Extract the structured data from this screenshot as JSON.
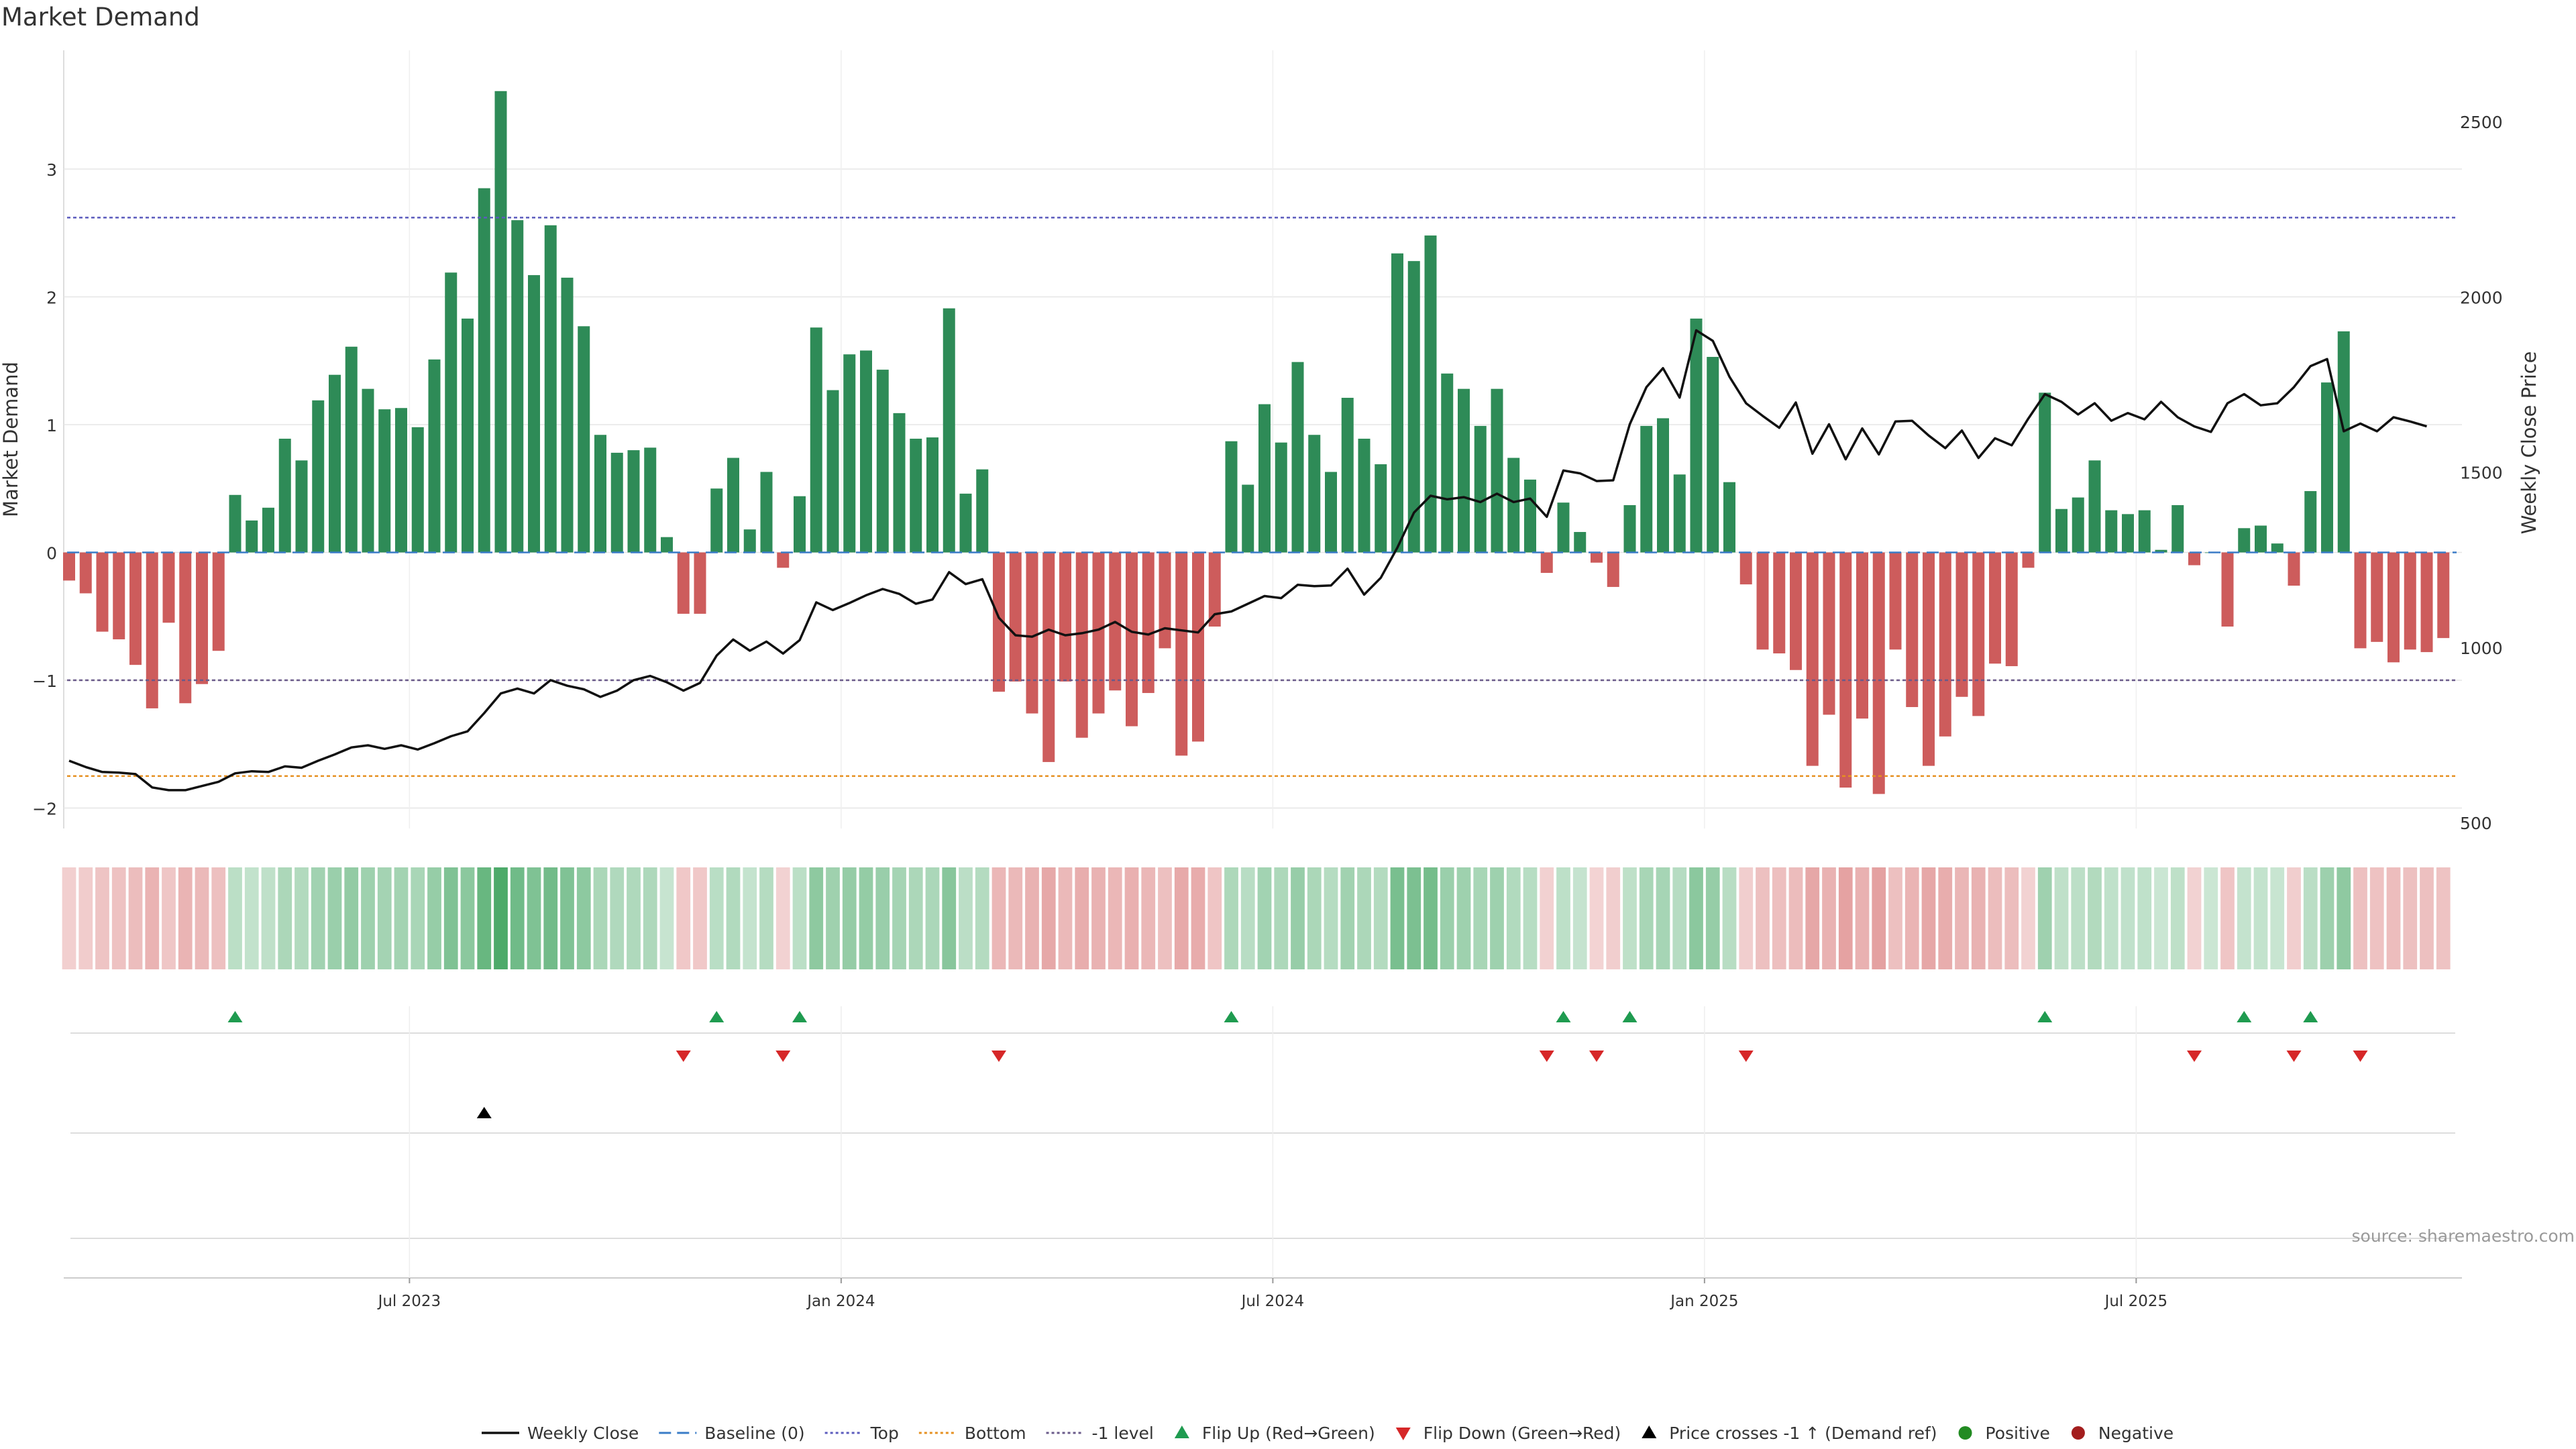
{
  "title": "Market Demand",
  "source": "source: sharemaestro.com",
  "colors": {
    "positive_bar": "#2e8b57",
    "negative_bar": "#cd5c5c",
    "price_line": "#111111",
    "top_line": "#5b5bbd",
    "bottom_line": "#e69020",
    "minus1_line": "#6a5a8a",
    "flip_up": "#1f9b50",
    "flip_down": "#d62728",
    "cross_marker": "#000000",
    "grid": "#e6e6e6"
  },
  "chart_data": {
    "type": "bar",
    "title": "Market Demand",
    "xlabel": "",
    "ylabel": "Market Demand",
    "y2label": "Weekly Close Price",
    "ylim": [
      -2.2,
      3.8
    ],
    "y2lim": [
      500,
      2620
    ],
    "yticks": [
      -2,
      -1,
      0,
      1,
      2,
      3
    ],
    "y2ticks": [
      500,
      1000,
      1500,
      2000,
      2500
    ],
    "start_week": "2023-03-06",
    "x_ticks": [
      {
        "label": "Jul 2023",
        "week": 21
      },
      {
        "label": "Jan 2024",
        "week": 47
      },
      {
        "label": "Jul 2024",
        "week": 73
      },
      {
        "label": "Jan 2025",
        "week": 99
      },
      {
        "label": "Jul 2025",
        "week": 125
      }
    ],
    "reference_lines": {
      "top": 2.62,
      "bottom": -1.75,
      "minus1": -1.0,
      "baseline": 0
    },
    "demand": [
      -0.22,
      -0.32,
      -0.62,
      -0.68,
      -0.88,
      -1.22,
      -0.55,
      -1.18,
      -1.03,
      -0.77,
      0.45,
      0.25,
      0.35,
      0.89,
      0.72,
      1.19,
      1.39,
      1.61,
      1.28,
      1.12,
      1.13,
      0.98,
      1.51,
      2.19,
      1.83,
      2.85,
      3.61,
      2.6,
      2.17,
      2.56,
      2.15,
      1.77,
      0.92,
      0.78,
      0.8,
      0.82,
      0.12,
      -0.48,
      -0.48,
      0.5,
      0.74,
      0.18,
      0.63,
      -0.12,
      0.44,
      1.76,
      1.27,
      1.55,
      1.58,
      1.43,
      1.09,
      0.89,
      0.9,
      1.91,
      0.46,
      0.65,
      -1.09,
      -1.01,
      -1.26,
      -1.64,
      -1.01,
      -1.45,
      -1.26,
      -1.08,
      -1.36,
      -1.1,
      -0.75,
      -1.59,
      -1.48,
      -0.58,
      0.87,
      0.53,
      1.16,
      0.86,
      1.49,
      0.92,
      0.63,
      1.21,
      0.89,
      0.69,
      2.34,
      2.28,
      2.48,
      1.4,
      1.28,
      0.99,
      1.28,
      0.74,
      0.57,
      -0.16,
      0.39,
      0.16,
      -0.08,
      -0.27,
      0.37,
      0.99,
      1.05,
      0.61,
      1.83,
      1.53,
      0.55,
      -0.25,
      -0.76,
      -0.79,
      -0.92,
      -1.67,
      -1.27,
      -1.84,
      -1.3,
      -1.89,
      -0.76,
      -1.21,
      -1.67,
      -1.44,
      -1.13,
      -1.28,
      -0.87,
      -0.89,
      -0.12,
      1.25,
      0.34,
      0.43,
      0.72,
      0.33,
      0.3,
      0.33,
      0.02,
      0.37,
      -0.1,
      0.0,
      -0.58,
      0.19,
      0.21,
      0.07,
      -0.26,
      0.48,
      1.33,
      1.73,
      -0.75,
      -0.7,
      -0.86,
      -0.76,
      -0.78,
      -0.67
    ],
    "close": [
      676,
      658,
      644,
      642,
      638,
      600,
      592,
      592,
      604,
      616,
      640,
      646,
      644,
      660,
      656,
      676,
      694,
      714,
      720,
      710,
      720,
      708,
      726,
      746,
      760,
      812,
      868,
      882,
      868,
      906,
      890,
      880,
      858,
      876,
      906,
      918,
      900,
      876,
      898,
      976,
      1022,
      990,
      1016,
      982,
      1020,
      1128,
      1106,
      1126,
      1148,
      1166,
      1152,
      1124,
      1136,
      1214,
      1180,
      1194,
      1084,
      1034,
      1030,
      1050,
      1034,
      1040,
      1050,
      1072,
      1044,
      1036,
      1054,
      1048,
      1042,
      1094,
      1102,
      1124,
      1146,
      1140,
      1178,
      1174,
      1176,
      1224,
      1150,
      1198,
      1284,
      1384,
      1432,
      1422,
      1428,
      1414,
      1438,
      1414,
      1424,
      1372,
      1504,
      1496,
      1474,
      1476,
      1636,
      1742,
      1796,
      1712,
      1904,
      1874,
      1772,
      1696,
      1660,
      1626,
      1698,
      1552,
      1636,
      1536,
      1624,
      1550,
      1644,
      1646,
      1604,
      1568,
      1618,
      1540,
      1596,
      1576,
      1652,
      1722,
      1700,
      1664,
      1696,
      1646,
      1668,
      1650,
      1700,
      1656,
      1630,
      1614,
      1696,
      1722,
      1690,
      1696,
      1742,
      1802,
      1822,
      1616,
      1638,
      1616,
      1656,
      1644,
      1630
    ]
  },
  "heat_strip": {
    "negative_hue": "#d05858",
    "positive_hue": "#2e9b50"
  },
  "signals": {
    "flip_up_weeks": [
      10,
      39,
      44,
      70,
      90,
      94,
      119,
      131,
      135
    ],
    "flip_down_weeks": [
      37,
      43,
      56,
      89,
      92,
      101,
      128,
      134,
      138
    ],
    "price_cross_weeks": [
      25
    ]
  },
  "legend": [
    {
      "label": "Weekly Close",
      "kind": "line",
      "color": "#111111"
    },
    {
      "label": "Baseline (0)",
      "kind": "dash",
      "color": "#3a7cc7"
    },
    {
      "label": "Top",
      "kind": "dot",
      "color": "#5b5bbd"
    },
    {
      "label": "Bottom",
      "kind": "dot",
      "color": "#e69020"
    },
    {
      "label": "-1 level",
      "kind": "dot",
      "color": "#6a5a8a"
    },
    {
      "label": "Flip Up (Red→Green)",
      "kind": "tri-up",
      "color": "#1f9b50"
    },
    {
      "label": "Flip Down (Green→Red)",
      "kind": "tri-down",
      "color": "#d62728"
    },
    {
      "label": "Price crosses -1 ↑ (Demand ref)",
      "kind": "tri-up",
      "color": "#000000"
    },
    {
      "label": "Positive",
      "kind": "circle",
      "color": "#228b22"
    },
    {
      "label": "Negative",
      "kind": "circle",
      "color": "#a31e1e"
    }
  ]
}
